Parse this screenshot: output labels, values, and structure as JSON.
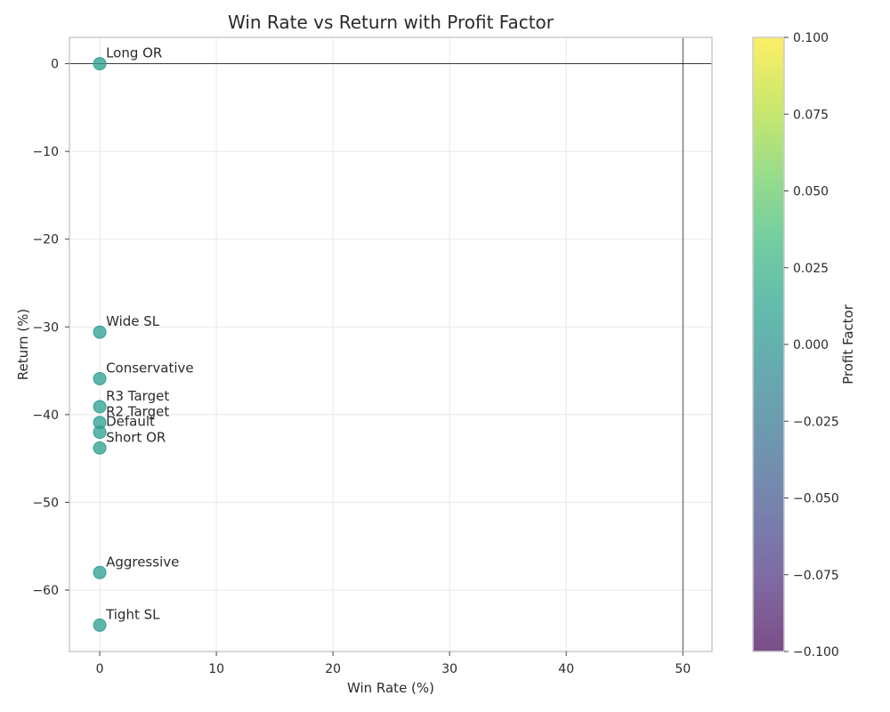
{
  "chart_data": {
    "type": "scatter",
    "title": "Win Rate vs Return with Profit Factor",
    "xlabel": "Win Rate (%)",
    "ylabel": "Return (%)",
    "xlim": [
      -2.6,
      52.5
    ],
    "ylim": [
      -67,
      3
    ],
    "x_ticks": [
      0,
      10,
      20,
      30,
      40,
      50
    ],
    "y_ticks": [
      0,
      -10,
      -20,
      -30,
      -40,
      -50,
      -60
    ],
    "x_tick_labels": [
      "0",
      "10",
      "20",
      "30",
      "40",
      "50"
    ],
    "y_tick_labels": [
      "0",
      "−10",
      "−20",
      "−30",
      "−40",
      "−50",
      "−60"
    ],
    "reference_lines": {
      "horizontal_y": 0,
      "vertical_x": 50
    },
    "grid": true,
    "points": [
      {
        "label": "Long OR",
        "x": 0,
        "y": 0.0,
        "profit_factor": 0.0
      },
      {
        "label": "Wide SL",
        "x": 0,
        "y": -30.6,
        "profit_factor": 0.0
      },
      {
        "label": "Conservative",
        "x": 0,
        "y": -35.9,
        "profit_factor": 0.0
      },
      {
        "label": "R3 Target",
        "x": 0,
        "y": -39.1,
        "profit_factor": 0.0
      },
      {
        "label": "R2 Target",
        "x": 0,
        "y": -40.9,
        "profit_factor": 0.0
      },
      {
        "label": "Default",
        "x": 0,
        "y": -42.0,
        "profit_factor": 0.0
      },
      {
        "label": "Short OR",
        "x": 0,
        "y": -43.8,
        "profit_factor": 0.0
      },
      {
        "label": "Aggressive",
        "x": 0,
        "y": -58.0,
        "profit_factor": 0.0
      },
      {
        "label": "Tight SL",
        "x": 0,
        "y": -64.0,
        "profit_factor": 0.0
      }
    ],
    "colorbar": {
      "label": "Profit Factor",
      "colormap": "viridis",
      "range": [
        -0.1,
        0.1
      ],
      "ticks": [
        0.1,
        0.075,
        0.05,
        0.025,
        0.0,
        -0.025,
        -0.05,
        -0.075,
        -0.1
      ],
      "tick_labels": [
        "0.100",
        "0.075",
        "0.050",
        "0.025",
        "0.000",
        "−0.025",
        "−0.050",
        "−0.075",
        "−0.100"
      ]
    }
  },
  "colors": {
    "point_fill": "#2a9d8f",
    "viridis": [
      "#440154",
      "#482878",
      "#3e4989",
      "#31688e",
      "#26828e",
      "#1f9e89",
      "#35b779",
      "#6ece58",
      "#b5de2b",
      "#fde725"
    ]
  }
}
